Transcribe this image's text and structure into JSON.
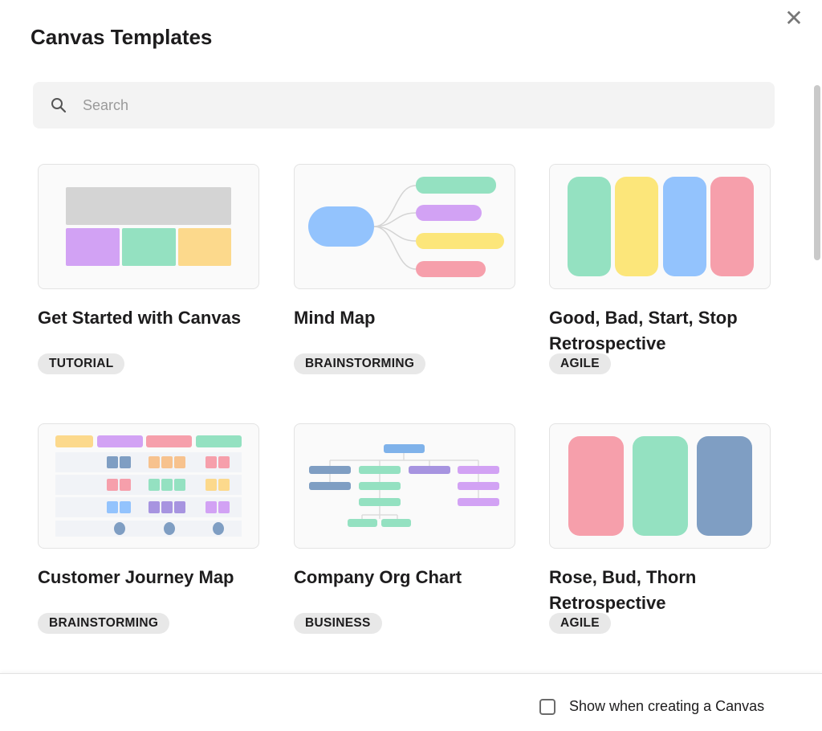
{
  "dialog": {
    "title": "Canvas Templates",
    "close_icon": "close-icon"
  },
  "search": {
    "placeholder": "Search",
    "value": "",
    "icon": "search-icon"
  },
  "templates": [
    {
      "title": "Get Started with Canvas",
      "tag": "TUTORIAL"
    },
    {
      "title": "Mind Map",
      "tag": "BRAINSTORMING"
    },
    {
      "title": "Good, Bad, Start, Stop Retrospective",
      "tag": "AGILE"
    },
    {
      "title": "Customer Journey Map",
      "tag": "BRAINSTORMING"
    },
    {
      "title": "Company Org Chart",
      "tag": "BUSINESS"
    },
    {
      "title": "Rose, Bud, Thorn Retrospective",
      "tag": "AGILE"
    }
  ],
  "footer": {
    "checkbox_label": "Show when creating a Canvas",
    "checked": false
  },
  "colors": {
    "green": "#94e1c1",
    "purple": "#d2a2f4",
    "yellow": "#fce67a",
    "blue": "#93c3fd",
    "pink": "#f69fab",
    "slate": "#7f9ec3",
    "orange": "#f7c28e",
    "violet": "#a794e0",
    "gray": "#d4d4d4"
  }
}
